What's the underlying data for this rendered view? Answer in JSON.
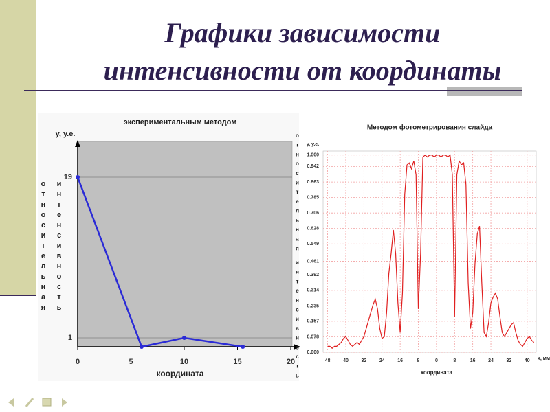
{
  "slide": {
    "title": [
      "Графики зависимости",
      "интенсивности от координаты"
    ]
  },
  "chart_data": [
    {
      "type": "line",
      "title": "экспериментальным методом",
      "y_label": "у, у.е.",
      "y_label_vertical": [
        "относительная",
        "интенсивность"
      ],
      "x_label": "координата",
      "x": [
        0,
        6,
        10,
        15.5
      ],
      "values": [
        19,
        0,
        1,
        0
      ],
      "color": "#2b2bd6",
      "markers": true,
      "xlim": [
        0,
        20
      ],
      "xticks": [
        0,
        5,
        10,
        15,
        20
      ],
      "ylim": [
        0,
        23
      ],
      "yticks": [
        1,
        19
      ],
      "grid": true,
      "background": "#c0c0c0"
    },
    {
      "type": "line",
      "title": "Методом фотометрирования слайда",
      "y_label": "у, у.е.",
      "y_label_vertical": [
        "относительная",
        "интенсивность"
      ],
      "x_label": "координата",
      "x_unit_label": "х, мм",
      "x": [
        -48,
        -47,
        -46,
        -45,
        -44,
        -43,
        -42,
        -41,
        -40,
        -39,
        -38,
        -37,
        -36,
        -35,
        -34,
        -33,
        -32,
        -31,
        -30,
        -29,
        -28,
        -27,
        -26,
        -25,
        -24,
        -23,
        -22,
        -21,
        -20,
        -19,
        -18,
        -17,
        -16,
        -15,
        -14,
        -13,
        -12,
        -11,
        -10,
        -9,
        -8,
        -7,
        -6,
        -5,
        -4,
        -3,
        -2,
        -1,
        0,
        1,
        2,
        3,
        4,
        5,
        6,
        7,
        8,
        9,
        10,
        11,
        12,
        13,
        14,
        15,
        16,
        17,
        18,
        19,
        20,
        21,
        22,
        23,
        24,
        25,
        26,
        27,
        28,
        29,
        30,
        31,
        32,
        33,
        34,
        35,
        36,
        37,
        38,
        39,
        40,
        41,
        42,
        43
      ],
      "values": [
        0.03,
        0.03,
        0.02,
        0.03,
        0.03,
        0.04,
        0.05,
        0.07,
        0.08,
        0.06,
        0.04,
        0.03,
        0.04,
        0.05,
        0.04,
        0.06,
        0.08,
        0.12,
        0.16,
        0.2,
        0.24,
        0.27,
        0.22,
        0.12,
        0.07,
        0.08,
        0.2,
        0.4,
        0.5,
        0.62,
        0.5,
        0.25,
        0.1,
        0.3,
        0.8,
        0.95,
        0.96,
        0.93,
        0.97,
        0.9,
        0.22,
        0.5,
        0.99,
        1.0,
        0.99,
        1.0,
        1.0,
        0.99,
        1.0,
        1.0,
        0.99,
        1.0,
        1.0,
        0.99,
        1.0,
        0.9,
        0.18,
        0.9,
        0.97,
        0.95,
        0.96,
        0.85,
        0.35,
        0.12,
        0.2,
        0.45,
        0.6,
        0.64,
        0.35,
        0.1,
        0.08,
        0.15,
        0.25,
        0.28,
        0.3,
        0.27,
        0.18,
        0.1,
        0.08,
        0.1,
        0.12,
        0.14,
        0.15,
        0.1,
        0.06,
        0.04,
        0.03,
        0.05,
        0.07,
        0.08,
        0.06,
        0.05
      ],
      "color": "#e02020",
      "markers": false,
      "xlim": [
        -50,
        44
      ],
      "xticks": [
        {
          "value": -48,
          "label": "48"
        },
        {
          "value": -40,
          "label": "40"
        },
        {
          "value": -32,
          "label": "32"
        },
        {
          "value": -24,
          "label": "24"
        },
        {
          "value": -16,
          "label": "16"
        },
        {
          "value": -8,
          "label": "8"
        },
        0,
        8,
        16,
        24,
        32,
        40
      ],
      "ylim": [
        0,
        1.02
      ],
      "yticks": [
        {
          "value": 0,
          "label": "0.000"
        },
        0.078,
        0.157,
        0.235,
        0.314,
        0.392,
        0.461,
        0.549,
        0.628,
        0.706,
        0.785,
        0.863,
        0.942,
        {
          "value": 1,
          "label": "1.000"
        }
      ],
      "grid": true,
      "background": "#ffffff"
    }
  ]
}
